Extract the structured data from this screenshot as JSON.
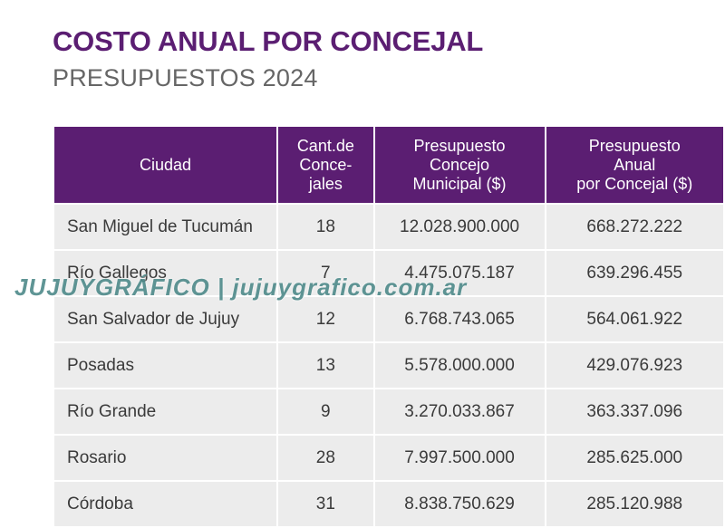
{
  "header": {
    "title": "COSTO ANUAL POR CONCEJAL",
    "subtitle": "PRESUPUESTOS 2024"
  },
  "table": {
    "columns": [
      "Ciudad",
      "Cant.de\nConce-\njales",
      "Presupuesto\nConcejo\nMunicipal ($)",
      "Presupuesto\nAnual\npor Concejal ($)"
    ],
    "rows": [
      [
        "San Miguel de Tucumán",
        "18",
        "12.028.900.000",
        "668.272.222"
      ],
      [
        "Río Gallegos",
        "7",
        "4.475.075.187",
        "639.296.455"
      ],
      [
        "San Salvador de Jujuy",
        "12",
        "6.768.743.065",
        "564.061.922"
      ],
      [
        "Posadas",
        "13",
        "5.578.000.000",
        "429.076.923"
      ],
      [
        "Río Grande",
        "9",
        "3.270.033.867",
        "363.337.096"
      ],
      [
        "Rosario",
        "28",
        "7.997.500.000",
        "285.625.000"
      ],
      [
        "Córdoba",
        "31",
        "8.838.750.629",
        "285.120.988"
      ]
    ]
  },
  "watermark": {
    "text": "JUJUYGRÁFICO | jujuygrafico.com.ar"
  },
  "colors": {
    "accent": "#5b1e72",
    "subtitle": "#666666",
    "cell_bg": "#ececec",
    "watermark": "#4e8a8a"
  }
}
